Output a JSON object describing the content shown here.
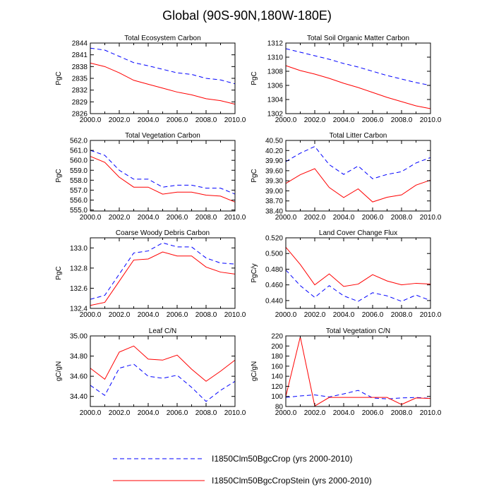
{
  "main_title": "Global (90S-90N,180W-180E)",
  "colors": {
    "series1": "#0000ff",
    "series2": "#ff0000",
    "axis": "#000000"
  },
  "legend": {
    "entries": [
      {
        "label": "I1850Clm50BgcCrop (yrs 2000-2010)",
        "style": "dashed",
        "color": "#0000ff"
      },
      {
        "label": "I1850Clm50BgcCropStein (yrs 2000-2010)",
        "style": "solid",
        "color": "#ff0000"
      }
    ]
  },
  "chart_data": [
    {
      "type": "line",
      "title": "Total Ecosystem Carbon",
      "ylabel": "PgC",
      "xlim": [
        2000,
        2010
      ],
      "ylim": [
        2826,
        2844
      ],
      "xticks": [
        "2000.0",
        "2002.0",
        "2004.0",
        "2006.0",
        "2008.0",
        "2010.0"
      ],
      "yticks": [
        "2826",
        "2829",
        "2832",
        "2835",
        "2838",
        "2841",
        "2844"
      ],
      "x": [
        2000,
        2001,
        2002,
        2003,
        2004,
        2005,
        2006,
        2007,
        2008,
        2009,
        2010
      ],
      "series": [
        {
          "values": [
            2842.7,
            2842.2,
            2840.6,
            2839.0,
            2838.2,
            2837.3,
            2836.4,
            2836.0,
            2835.0,
            2834.6,
            2833.6
          ]
        },
        {
          "values": [
            2838.9,
            2838.0,
            2836.4,
            2834.5,
            2833.5,
            2832.5,
            2831.5,
            2830.8,
            2829.8,
            2829.3,
            2828.4
          ]
        }
      ]
    },
    {
      "type": "line",
      "title": "Total Soil Organic Matter Carbon",
      "ylabel": "PgC",
      "xlim": [
        2000,
        2010
      ],
      "ylim": [
        1302,
        1312
      ],
      "xticks": [
        "2000.0",
        "2002.0",
        "2004.0",
        "2006.0",
        "2008.0",
        "2010.0"
      ],
      "yticks": [
        "1302",
        "1304",
        "1306",
        "1308",
        "1310",
        "1312"
      ],
      "x": [
        2000,
        2001,
        2002,
        2003,
        2004,
        2005,
        2006,
        2007,
        2008,
        2009,
        2010
      ],
      "series": [
        {
          "values": [
            1311.2,
            1310.7,
            1310.2,
            1309.7,
            1309.1,
            1308.6,
            1308.0,
            1307.4,
            1306.9,
            1306.4,
            1306.0
          ]
        },
        {
          "values": [
            1308.8,
            1308.1,
            1307.6,
            1307.0,
            1306.3,
            1305.7,
            1305.0,
            1304.3,
            1303.7,
            1303.1,
            1302.7
          ]
        }
      ]
    },
    {
      "type": "line",
      "title": "Total Vegetation Carbon",
      "ylabel": "PgC",
      "xlim": [
        2000,
        2010
      ],
      "ylim": [
        554.9,
        562.0
      ],
      "xticks": [
        "2000.0",
        "2002.0",
        "2004.0",
        "2006.0",
        "2008.0",
        "2010.0"
      ],
      "yticks": [
        "555.0",
        "556.0",
        "557.0",
        "558.0",
        "559.0",
        "560.0",
        "561.0",
        "562.0"
      ],
      "x": [
        2000,
        2001,
        2002,
        2003,
        2004,
        2005,
        2006,
        2007,
        2008,
        2009,
        2010
      ],
      "series": [
        {
          "values": [
            561.0,
            560.5,
            559.0,
            558.1,
            558.1,
            557.3,
            557.5,
            557.5,
            557.2,
            557.2,
            556.6
          ]
        },
        {
          "values": [
            560.4,
            559.8,
            558.3,
            557.3,
            557.3,
            556.6,
            556.8,
            556.8,
            556.5,
            556.4,
            555.8
          ]
        }
      ]
    },
    {
      "type": "line",
      "title": "Total Litter Carbon",
      "ylabel": "PgC",
      "xlim": [
        2000,
        2010
      ],
      "ylim": [
        38.4,
        40.5
      ],
      "xticks": [
        "2000.0",
        "2002.0",
        "2004.0",
        "2006.0",
        "2008.0",
        "2010.0"
      ],
      "yticks": [
        "38.40",
        "38.70",
        "39.00",
        "39.30",
        "39.60",
        "39.90",
        "40.20",
        "40.50"
      ],
      "x": [
        2000,
        2001,
        2002,
        2003,
        2004,
        2005,
        2006,
        2007,
        2008,
        2009,
        2010
      ],
      "series": [
        {
          "values": [
            39.87,
            40.12,
            40.32,
            39.78,
            39.49,
            39.74,
            39.36,
            39.49,
            39.57,
            39.83,
            39.99
          ]
        },
        {
          "values": [
            39.22,
            39.48,
            39.66,
            39.1,
            38.8,
            39.06,
            38.67,
            38.81,
            38.88,
            39.17,
            39.32
          ]
        }
      ]
    },
    {
      "type": "line",
      "title": "Coarse Woody Debris Carbon",
      "ylabel": "PgC",
      "xlim": [
        2000,
        2010
      ],
      "ylim": [
        132.4,
        133.1
      ],
      "xticks": [
        "2000.0",
        "2002.0",
        "2004.0",
        "2006.0",
        "2008.0",
        "2010.0"
      ],
      "yticks": [
        "132.4",
        "132.6",
        "132.8",
        "133.0"
      ],
      "x": [
        2000,
        2001,
        2002,
        2003,
        2004,
        2005,
        2006,
        2007,
        2008,
        2009,
        2010
      ],
      "series": [
        {
          "values": [
            132.49,
            132.53,
            132.74,
            132.95,
            132.97,
            133.05,
            133.01,
            133.01,
            132.9,
            132.85,
            132.84
          ]
        },
        {
          "values": [
            132.43,
            132.46,
            132.67,
            132.88,
            132.89,
            132.96,
            132.92,
            132.92,
            132.81,
            132.76,
            132.74
          ]
        }
      ]
    },
    {
      "type": "line",
      "title": "Land Cover Change Flux",
      "ylabel": "PgC/y",
      "xlim": [
        2000,
        2010
      ],
      "ylim": [
        0.43,
        0.52
      ],
      "xticks": [
        "2000.0",
        "2002.0",
        "2004.0",
        "2006.0",
        "2008.0",
        "2010.0"
      ],
      "yticks": [
        "0.440",
        "0.460",
        "0.480",
        "0.500",
        "0.520"
      ],
      "x": [
        2000,
        2001,
        2002,
        2003,
        2004,
        2005,
        2006,
        2007,
        2008,
        2009,
        2010
      ],
      "series": [
        {
          "values": [
            0.479,
            0.459,
            0.444,
            0.459,
            0.446,
            0.439,
            0.45,
            0.446,
            0.439,
            0.447,
            0.44
          ]
        },
        {
          "values": [
            0.508,
            0.486,
            0.46,
            0.474,
            0.458,
            0.461,
            0.473,
            0.465,
            0.46,
            0.462,
            0.461
          ]
        }
      ]
    },
    {
      "type": "line",
      "title": "Leaf C/N",
      "ylabel": "gC/gN",
      "xlim": [
        2000,
        2010
      ],
      "ylim": [
        34.3,
        35.0
      ],
      "xticks": [
        "2000.0",
        "2002.0",
        "2004.0",
        "2006.0",
        "2008.0",
        "2010.0"
      ],
      "yticks": [
        "34.40",
        "34.60",
        "34.80",
        "35.00"
      ],
      "x": [
        2000,
        2001,
        2002,
        2003,
        2004,
        2005,
        2006,
        2007,
        2008,
        2009,
        2010
      ],
      "series": [
        {
          "values": [
            34.51,
            34.41,
            34.68,
            34.72,
            34.6,
            34.58,
            34.61,
            34.49,
            34.35,
            34.46,
            34.55
          ]
        },
        {
          "values": [
            34.68,
            34.57,
            34.84,
            34.9,
            34.77,
            34.76,
            34.81,
            34.67,
            34.55,
            34.65,
            34.76
          ]
        }
      ]
    },
    {
      "type": "line",
      "title": "Total Vegetation C/N",
      "ylabel": "gC/gN",
      "xlim": [
        2000,
        2010
      ],
      "ylim": [
        80,
        220
      ],
      "xticks": [
        "2000.0",
        "2002.0",
        "2004.0",
        "2006.0",
        "2008.0",
        "2010.0"
      ],
      "yticks": [
        "80",
        "100",
        "120",
        "140",
        "160",
        "180",
        "200",
        "220"
      ],
      "x": [
        2000,
        2001,
        2002,
        2003,
        2004,
        2005,
        2006,
        2007,
        2008,
        2009,
        2010
      ],
      "series": [
        {
          "values": [
            98,
            101,
            103,
            99,
            105,
            112,
            97,
            95,
            97,
            98,
            96
          ]
        },
        {
          "values": [
            100,
            218,
            81,
            98,
            98,
            98,
            98,
            98,
            84,
            97,
            96
          ]
        }
      ]
    }
  ]
}
